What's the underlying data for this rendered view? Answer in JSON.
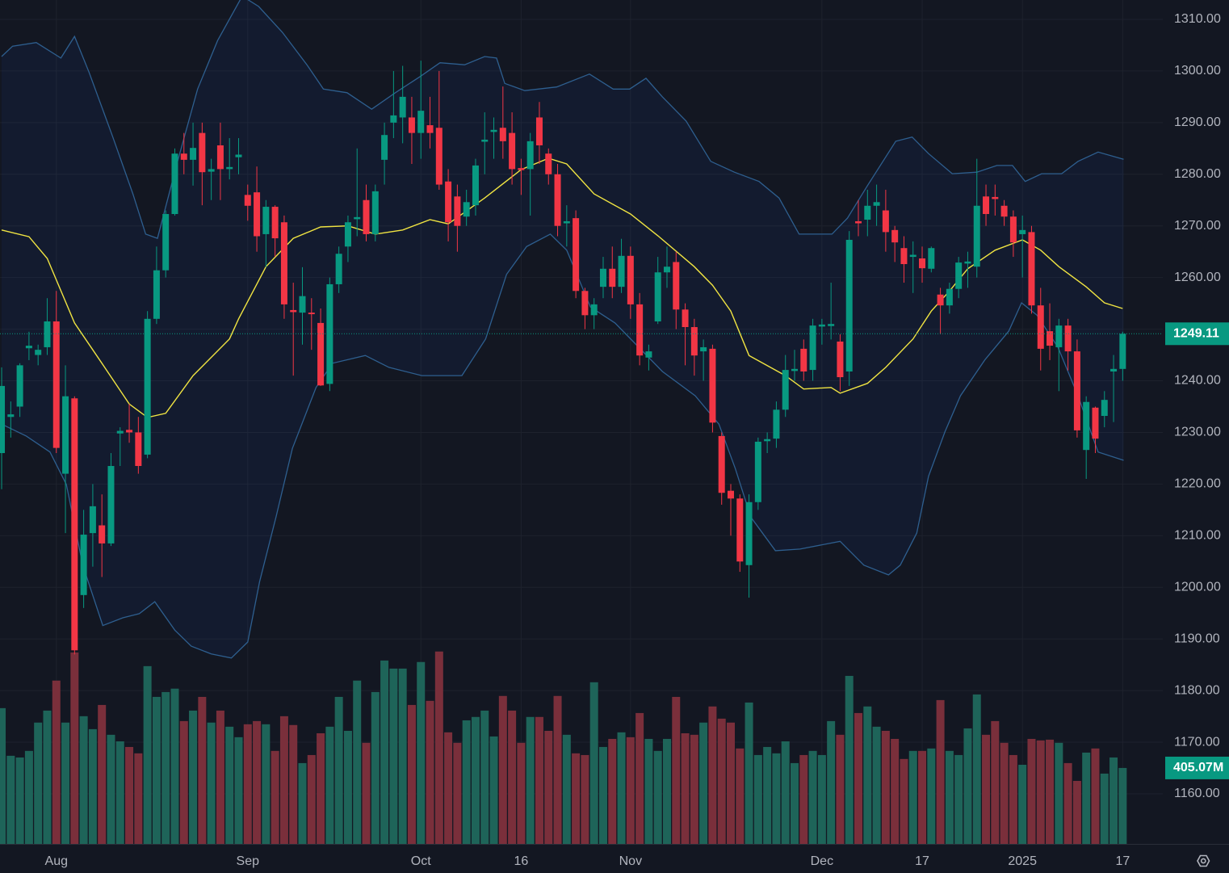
{
  "chart_data": {
    "type": "candlestick",
    "xlim": [
      -0.18,
      127.4
    ],
    "ylim": [
      1150.3,
      1313.75
    ],
    "vlim": [
      0,
      4500
    ],
    "grid": true,
    "up_color": "#089981",
    "down_color": "#f23645",
    "volume_up_color": "#1e6459",
    "volume_down_color": "#7a2f3b",
    "background": "#131722",
    "xticks": [
      {
        "value": 6,
        "label": "Aug"
      },
      {
        "value": 27,
        "label": "Sep"
      },
      {
        "value": 46,
        "label": "Oct"
      },
      {
        "value": 57,
        "label": "16"
      },
      {
        "value": 69,
        "label": "Nov"
      },
      {
        "value": 90,
        "label": "Dec"
      },
      {
        "value": 101,
        "label": "17"
      },
      {
        "value": 112,
        "label": "2025"
      },
      {
        "value": 123,
        "label": "17"
      }
    ],
    "yticks": [
      {
        "value": 1160,
        "label": "1160.00"
      },
      {
        "value": 1170,
        "label": "1170.00"
      },
      {
        "value": 1180,
        "label": "1180.00"
      },
      {
        "value": 1190,
        "label": "1190.00"
      },
      {
        "value": 1200,
        "label": "1200.00"
      },
      {
        "value": 1210,
        "label": "1210.00"
      },
      {
        "value": 1220,
        "label": "1220.00"
      },
      {
        "value": 1230,
        "label": "1230.00"
      },
      {
        "value": 1240,
        "label": "1240.00"
      },
      {
        "value": 1250,
        "label": "1250.00"
      },
      {
        "value": 1260,
        "label": "1260.00"
      },
      {
        "value": 1270,
        "label": "1270.00"
      },
      {
        "value": 1280,
        "label": "1280.00"
      },
      {
        "value": 1290,
        "label": "1290.00"
      },
      {
        "value": 1300,
        "label": "1300.00"
      },
      {
        "value": 1310,
        "label": "1310.00"
      }
    ],
    "open": [
      1226,
      1233,
      1235,
      1246.3,
      1245,
      1246.5,
      1251.5,
      1222,
      1236.6,
      1198.5,
      1210.5,
      1212,
      1208.5,
      1229.8,
      1230.5,
      1230,
      1225.7,
      1252,
      1261.4,
      1272.3,
      1284,
      1282.8,
      1288,
      1280.5,
      1285.6,
      1281,
      1283.3,
      1276,
      1276.5,
      1268.4,
      1273.7,
      1270.7,
      1253.7,
      1253.2,
      1253.2,
      1251.2,
      1239.4,
      1258.7,
      1266,
      1271.3,
      1275,
      1268.4,
      1282.8,
      1290,
      1291,
      1291,
      1288,
      1289.5,
      1289,
      1278.6,
      1275.7,
      1271.8,
      1274,
      1286.3,
      1288.2,
      1289,
      1288,
      1281.2,
      1281,
      1291,
      1284,
      1280,
      1270.5,
      1271.5,
      1257.4,
      1252.7,
      1258.2,
      1261.7,
      1258.2,
      1264.2,
      1254.8,
      1244.5,
      1251.5,
      1261,
      1263,
      1253.8,
      1250.4,
      1245.7,
      1246.2,
      1229.3,
      1218.7,
      1217.2,
      1204.3,
      1216.5,
      1228.3,
      1228.8,
      1234.4,
      1241.9,
      1246.2,
      1242.1,
      1250.5,
      1250.6,
      1247.6,
      1241.8,
      1270.9,
      1271.2,
      1273.9,
      1273,
      1269.2,
      1265.7,
      1264,
      1263.7,
      1261.7,
      1256.7,
      1254.6,
      1257.8,
      1262.7,
      1262.1,
      1275.7,
      1275.6,
      1273.9,
      1271.8,
      1268.4,
      1268.8,
      1254.6,
      1249.6,
      1246.5,
      1250.7,
      1245.7,
      1226.6,
      1234.8,
      1233.2,
      1241.8,
      1242.3
    ],
    "high": [
      1242.6,
      1236,
      1243.4,
      1249.5,
      1247,
      1256,
      1257.4,
      1243,
      1237,
      1215,
      1220,
      1218,
      1226,
      1231,
      1235.5,
      1233,
      1253.5,
      1266,
      1273,
      1285,
      1288,
      1290,
      1290,
      1283,
      1290,
      1287,
      1287,
      1278,
      1281.5,
      1275,
      1274,
      1272,
      1259,
      1262,
      1256,
      1254,
      1260,
      1266,
      1272,
      1285,
      1278,
      1278,
      1290,
      1300,
      1301,
      1295,
      1302,
      1295,
      1300,
      1281,
      1278,
      1277,
      1283,
      1292,
      1291,
      1297,
      1292,
      1283,
      1288,
      1294,
      1285,
      1282,
      1274,
      1273,
      1258,
      1256,
      1264,
      1266,
      1267.5,
      1266,
      1257,
      1247,
      1264,
      1266,
      1265,
      1255,
      1252,
      1248,
      1247,
      1230,
      1220,
      1218,
      1218,
      1229,
      1230,
      1236,
      1245,
      1246,
      1248,
      1252,
      1252,
      1259,
      1249,
      1269,
      1275,
      1277,
      1278,
      1277,
      1270,
      1268,
      1267,
      1266,
      1266,
      1258,
      1259,
      1264,
      1265,
      1283,
      1278,
      1278,
      1275,
      1273,
      1272,
      1270,
      1258,
      1255,
      1252,
      1252,
      1248,
      1237,
      1235,
      1238,
      1245,
      1249.5
    ],
    "low": [
      1219,
      1229,
      1233,
      1244,
      1243,
      1245,
      1226,
      1210.5,
      1187,
      1196,
      1204,
      1202,
      1208,
      1223.5,
      1228,
      1222,
      1225,
      1251,
      1260,
      1272,
      1280,
      1277.8,
      1274,
      1275,
      1275,
      1279,
      1280,
      1271,
      1265,
      1262,
      1264,
      1252,
      1241,
      1247,
      1246,
      1239,
      1238,
      1257,
      1263,
      1268,
      1267,
      1267,
      1278,
      1287,
      1286,
      1282,
      1283,
      1285,
      1277,
      1267,
      1265,
      1270,
      1272,
      1280,
      1283,
      1283,
      1278,
      1276,
      1272,
      1282,
      1278,
      1268,
      1266,
      1256,
      1250,
      1250,
      1256,
      1256,
      1257,
      1252,
      1243,
      1242,
      1251,
      1258,
      1250,
      1243,
      1241,
      1240,
      1230,
      1216,
      1210,
      1203,
      1198,
      1215,
      1226,
      1227,
      1233,
      1240,
      1240,
      1240,
      1247,
      1248,
      1238,
      1239,
      1268,
      1268,
      1270,
      1265,
      1263,
      1259,
      1257,
      1259,
      1261,
      1249,
      1253,
      1256,
      1258,
      1260,
      1270,
      1272,
      1270,
      1264,
      1260,
      1253,
      1242,
      1244,
      1238,
      1242,
      1229,
      1221,
      1226,
      1231,
      1232,
      1240
    ],
    "close": [
      1239,
      1233.5,
      1243,
      1246.8,
      1246,
      1251.5,
      1227,
      1237,
      1187.8,
      1210.2,
      1215.7,
      1208.5,
      1223.5,
      1230.3,
      1230,
      1223.5,
      1252,
      1261.4,
      1272.3,
      1284,
      1282.8,
      1285.1,
      1280.4,
      1281,
      1281,
      1281.4,
      1283.8,
      1273.9,
      1268,
      1273.7,
      1267.6,
      1254.8,
      1253.3,
      1256.4,
      1252.9,
      1239.1,
      1258.7,
      1264.6,
      1270.7,
      1271.7,
      1268.4,
      1276.7,
      1287.6,
      1291.4,
      1295,
      1288,
      1292.3,
      1288,
      1278,
      1270.7,
      1270,
      1274.6,
      1281.7,
      1286.7,
      1288.6,
      1286.4,
      1281,
      1280.8,
      1286.4,
      1285.6,
      1280,
      1270,
      1270.9,
      1257.4,
      1252.7,
      1254.8,
      1261.7,
      1258.2,
      1264.2,
      1254.8,
      1244.9,
      1245.7,
      1261,
      1262.1,
      1253.8,
      1250.4,
      1244.9,
      1246.5,
      1231.9,
      1218.3,
      1217.2,
      1205,
      1216.5,
      1228.2,
      1228.7,
      1234.4,
      1242.1,
      1242.3,
      1241.8,
      1250.7,
      1250.9,
      1251,
      1240.7,
      1267.3,
      1270.5,
      1273.9,
      1274.6,
      1268.8,
      1266.8,
      1262.6,
      1264.4,
      1261.8,
      1265.7,
      1254.6,
      1257.8,
      1262.9,
      1263.1,
      1273.9,
      1272.3,
      1275.2,
      1271.8,
      1266.8,
      1269.2,
      1254.6,
      1246.2,
      1246.8,
      1250.7,
      1245.7,
      1230.4,
      1235.9,
      1228.8,
      1236.3,
      1242.3,
      1249.11
    ],
    "volume": {
      "values": [
        724,
        470,
        461,
        496,
        647,
        711,
        871,
        647,
        1021,
        681,
        612,
        741,
        582,
        547,
        517,
        483,
        948,
        784,
        810,
        828,
        655,
        711,
        784,
        647,
        711,
        625,
        569,
        638,
        655,
        638,
        496,
        681,
        634,
        431,
        474,
        590,
        625,
        784,
        603,
        871,
        539,
        810,
        978,
        935,
        935,
        741,
        970,
        763,
        1026,
        595,
        539,
        659,
        677,
        711,
        573,
        789,
        711,
        539,
        677,
        677,
        603,
        789,
        582,
        483,
        474,
        862,
        517,
        560,
        595,
        569,
        698,
        560,
        496,
        560,
        784,
        590,
        582,
        647,
        733,
        668,
        647,
        509,
        754,
        474,
        517,
        483,
        547,
        431,
        474,
        496,
        474,
        655,
        582,
        896,
        698,
        733,
        625,
        603,
        560,
        453,
        496,
        496,
        509,
        767,
        496,
        474,
        616,
        797,
        582,
        655,
        539,
        474,
        422,
        560,
        552,
        556,
        539,
        431,
        336,
        487,
        509,
        375,
        461,
        405.07
      ],
      "last_value_label": "405.07M"
    },
    "ma": {
      "color": "#f0e442",
      "x": [
        0,
        3,
        5,
        8,
        11,
        14,
        16,
        18,
        21,
        25,
        26,
        29,
        32,
        35,
        38,
        41,
        44,
        47,
        49,
        53,
        57,
        60,
        62,
        65,
        69,
        72,
        76,
        78,
        80,
        82,
        86,
        88,
        91,
        92,
        95,
        97,
        100,
        102,
        104,
        106,
        109,
        112,
        114,
        116,
        119,
        121,
        123
      ],
      "values": [
        1269.2,
        1267.9,
        1263.7,
        1251.2,
        1243.4,
        1235.5,
        1232.9,
        1233.7,
        1241,
        1248.1,
        1252,
        1262.1,
        1267.6,
        1269.8,
        1270,
        1268.4,
        1269.2,
        1271.2,
        1270.4,
        1275.4,
        1280.9,
        1283.1,
        1282,
        1276.2,
        1272.3,
        1268.1,
        1262.1,
        1258.5,
        1253.5,
        1244.9,
        1241,
        1238.4,
        1238.7,
        1237.6,
        1239.5,
        1242.6,
        1248.1,
        1253.5,
        1257.4,
        1261.7,
        1265.3,
        1267.3,
        1265.3,
        1262.1,
        1258.2,
        1255.1,
        1254
      ]
    },
    "bands": {
      "color": "#2e5f8f",
      "fill": "rgba(41,98,255,0.06)",
      "upper": {
        "x": [
          0,
          1.2,
          3.8,
          6.5,
          8,
          9.6,
          12.2,
          14.4,
          15.8,
          17.1,
          19.3,
          21.5,
          23.7,
          26.4,
          28.2,
          30.8,
          33.5,
          35.3,
          37.9,
          40.6,
          43.2,
          45.9,
          48.1,
          50.8,
          53,
          54.3,
          55.2,
          57.4,
          60.9,
          64.5,
          67.1,
          68.9,
          70.7,
          72.5,
          75.1,
          77.8,
          80.4,
          83.1,
          85.3,
          87.5,
          91.1,
          92.8,
          95,
          98.1,
          99.9,
          101.7,
          104.3,
          107,
          109.2,
          110.9,
          112.3,
          114.1,
          116.3,
          118.1,
          120.3,
          123.1
        ],
        "values": [
          1302.8,
          1304.8,
          1305.5,
          1302.5,
          1306.7,
          1299.7,
          1287.2,
          1276.2,
          1268.4,
          1267.6,
          1282.5,
          1296.5,
          1305.9,
          1314.5,
          1312.5,
          1307.5,
          1301.2,
          1296.5,
          1295.8,
          1292.6,
          1295.8,
          1298.9,
          1301.6,
          1301.2,
          1302.8,
          1302.5,
          1297.6,
          1296.2,
          1296.9,
          1299.4,
          1296.5,
          1296.5,
          1298.6,
          1295,
          1290.3,
          1282.5,
          1280.4,
          1278.6,
          1275.4,
          1268.4,
          1268.4,
          1271.5,
          1277.8,
          1286.4,
          1287.2,
          1284,
          1280.1,
          1280.4,
          1281.7,
          1281.7,
          1278.6,
          1280.1,
          1280.1,
          1282.5,
          1284.3,
          1282.9
        ]
      },
      "lower": {
        "x": [
          0,
          2.7,
          5.3,
          7.1,
          8.9,
          11.1,
          13.3,
          15.1,
          16.8,
          19,
          20.8,
          23,
          25.2,
          27,
          28.3,
          30.1,
          31.9,
          34.5,
          36.3,
          39.9,
          42.5,
          46.1,
          50.5,
          53.1,
          55.4,
          57.6,
          60.2,
          62,
          64.6,
          67.3,
          69.9,
          72.5,
          76.1,
          78.7,
          80.5,
          82.2,
          84.9,
          87.6,
          92,
          94.6,
          97.3,
          98.6,
          100.4,
          101.7,
          103.5,
          105.2,
          107.9,
          110.5,
          111.9,
          113.6,
          115.9,
          118.1,
          120.3,
          123.1
        ],
        "values": [
          1231.6,
          1229.3,
          1226.2,
          1219.9,
          1204.3,
          1192.6,
          1194.1,
          1194.9,
          1197.2,
          1191.7,
          1188.6,
          1187.1,
          1186.3,
          1189.4,
          1201.1,
          1213.6,
          1226.9,
          1238.7,
          1243.4,
          1244.9,
          1242.6,
          1241,
          1241,
          1248.1,
          1260.6,
          1266,
          1268.4,
          1265.3,
          1254.3,
          1251.2,
          1246.5,
          1241.8,
          1237.1,
          1231.6,
          1223,
          1213.6,
          1207.1,
          1207.4,
          1208.9,
          1204.3,
          1202.4,
          1204.3,
          1210.5,
          1221.5,
          1230.1,
          1237.1,
          1244.1,
          1249.6,
          1255.1,
          1252.7,
          1246.5,
          1237.1,
          1226.2,
          1224.6
        ]
      }
    }
  }
}
